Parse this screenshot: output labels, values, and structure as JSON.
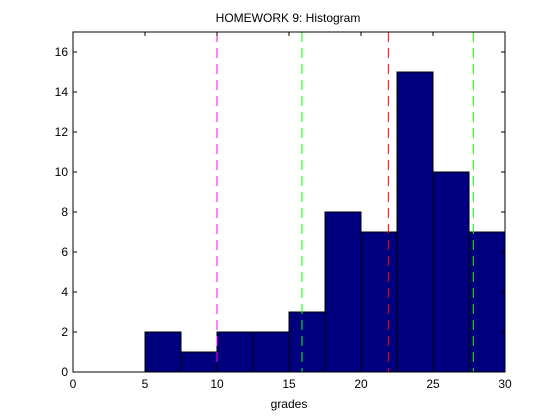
{
  "chart_data": {
    "type": "bar",
    "title": "HOMEWORK 9: Histogram",
    "xlabel": "grades",
    "ylabel": "",
    "xlim": [
      0,
      30
    ],
    "ylim": [
      0,
      17
    ],
    "xticks": [
      0,
      5,
      10,
      15,
      20,
      25,
      30
    ],
    "yticks": [
      0,
      2,
      4,
      6,
      8,
      10,
      12,
      14,
      16
    ],
    "bin_edges": [
      5,
      7.5,
      10,
      12.5,
      15,
      17.5,
      20,
      22.5,
      25,
      27.5,
      30
    ],
    "values": [
      2,
      1,
      2,
      2,
      3,
      8,
      7,
      15,
      10,
      7
    ],
    "bar_color": "#00007f",
    "vertical_lines": [
      {
        "x": 10,
        "color": "#ff00ff"
      },
      {
        "x": 15.9,
        "color": "#00ff00"
      },
      {
        "x": 21.9,
        "color": "#ff0000"
      },
      {
        "x": 27.8,
        "color": "#00ff00"
      }
    ],
    "grid": false,
    "legend": "none"
  }
}
